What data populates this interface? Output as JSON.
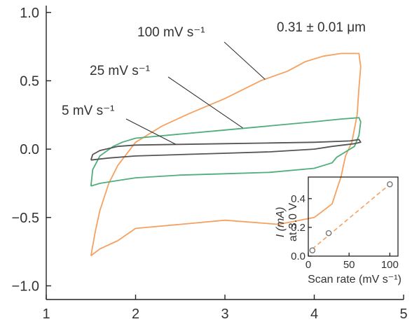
{
  "colors": {
    "c100": "#F6A15F",
    "c25": "#4FAE7A",
    "c5": "#555555",
    "fit": "#F6A15F",
    "marker": "#777777"
  },
  "chart_data": {
    "type": "line",
    "xlim": [
      1,
      5
    ],
    "ylim": [
      -1.1,
      1.05
    ],
    "xticks": [
      1,
      2,
      3,
      4,
      5
    ],
    "yticks": [
      -1.0,
      -0.5,
      0.0,
      0.5,
      1.0
    ],
    "x_tick_labels": [
      "1",
      "2",
      "3",
      "4",
      "5"
    ],
    "y_tick_labels": [
      "−1.0",
      "−0.5",
      "0.0",
      "0.5",
      "1.0"
    ],
    "annotation": "0.31 ± 0.01 μm",
    "series": [
      {
        "name": "100 mV s⁻¹",
        "color_key": "c100",
        "x": [
          1.5,
          1.55,
          1.6,
          1.7,
          1.8,
          2.0,
          2.3,
          2.6,
          3.0,
          3.4,
          3.7,
          3.9,
          4.1,
          4.3,
          4.45,
          4.5,
          4.52,
          4.5,
          4.48,
          4.42,
          4.35,
          4.3,
          4.25,
          4.2,
          4.0,
          3.6,
          3.0,
          2.5,
          2.0,
          1.8,
          1.6,
          1.5,
          1.5
        ],
        "y": [
          -0.78,
          -0.6,
          -0.45,
          -0.25,
          -0.12,
          0.05,
          0.17,
          0.26,
          0.37,
          0.5,
          0.57,
          0.64,
          0.68,
          0.7,
          0.7,
          0.7,
          0.6,
          0.45,
          0.25,
          0.05,
          -0.05,
          -0.2,
          -0.3,
          -0.4,
          -0.5,
          -0.55,
          -0.52,
          -0.55,
          -0.58,
          -0.67,
          -0.73,
          -0.78,
          -0.78
        ]
      },
      {
        "name": "25 mV s⁻¹",
        "color_key": "c25",
        "x": [
          1.5,
          1.52,
          1.6,
          1.75,
          1.85,
          2.0,
          2.5,
          3.0,
          3.5,
          4.0,
          4.3,
          4.5,
          4.52,
          4.5,
          4.45,
          4.35,
          4.25,
          4.2,
          4.0,
          3.5,
          3.0,
          2.5,
          2.0,
          1.8,
          1.6,
          1.5,
          1.5
        ],
        "y": [
          -0.27,
          -0.15,
          -0.05,
          0.02,
          0.05,
          0.08,
          0.11,
          0.14,
          0.17,
          0.2,
          0.22,
          0.23,
          0.2,
          0.1,
          0.02,
          -0.02,
          -0.06,
          -0.1,
          -0.14,
          -0.17,
          -0.18,
          -0.19,
          -0.21,
          -0.23,
          -0.25,
          -0.27,
          -0.27
        ]
      },
      {
        "name": "5 mV s⁻¹",
        "color_key": "c5",
        "x": [
          1.5,
          1.52,
          1.6,
          1.8,
          2.0,
          2.5,
          3.0,
          3.5,
          4.0,
          4.4,
          4.5,
          4.52,
          4.45,
          4.2,
          4.0,
          3.5,
          3.0,
          2.5,
          2.0,
          1.7,
          1.5,
          1.5
        ],
        "y": [
          -0.08,
          -0.04,
          -0.01,
          0.02,
          0.03,
          0.035,
          0.04,
          0.045,
          0.05,
          0.06,
          0.07,
          0.05,
          0.04,
          0.02,
          0.0,
          -0.02,
          -0.03,
          -0.04,
          -0.05,
          -0.065,
          -0.08,
          -0.08
        ]
      }
    ],
    "labels": [
      {
        "text": "100 mV s⁻¹",
        "series": "100 mV s⁻¹"
      },
      {
        "text": "25 mV s⁻¹",
        "series": "25 mV s⁻¹"
      },
      {
        "text": "5 mV s⁻¹",
        "series": "5 mV s⁻¹"
      }
    ],
    "inset": {
      "type": "scatter",
      "xlabel": "Scan rate (mV s⁻¹)",
      "ylabel_line1": "I (mA)",
      "ylabel_line2": "at 3.0 V",
      "xlim": [
        0,
        110
      ],
      "ylim": [
        0,
        0.55
      ],
      "xticks": [
        0,
        50,
        100
      ],
      "yticks": [
        0.0,
        0.2,
        0.4
      ],
      "x_tick_labels": [
        "0",
        "50",
        "100"
      ],
      "y_tick_labels": [
        "0.0",
        "0.2",
        "0.4"
      ],
      "points": [
        {
          "x": 5,
          "y": 0.04
        },
        {
          "x": 25,
          "y": 0.16
        },
        {
          "x": 100,
          "y": 0.5
        }
      ],
      "fit": {
        "x": [
          5,
          100
        ],
        "y": [
          0.05,
          0.5
        ]
      }
    }
  }
}
